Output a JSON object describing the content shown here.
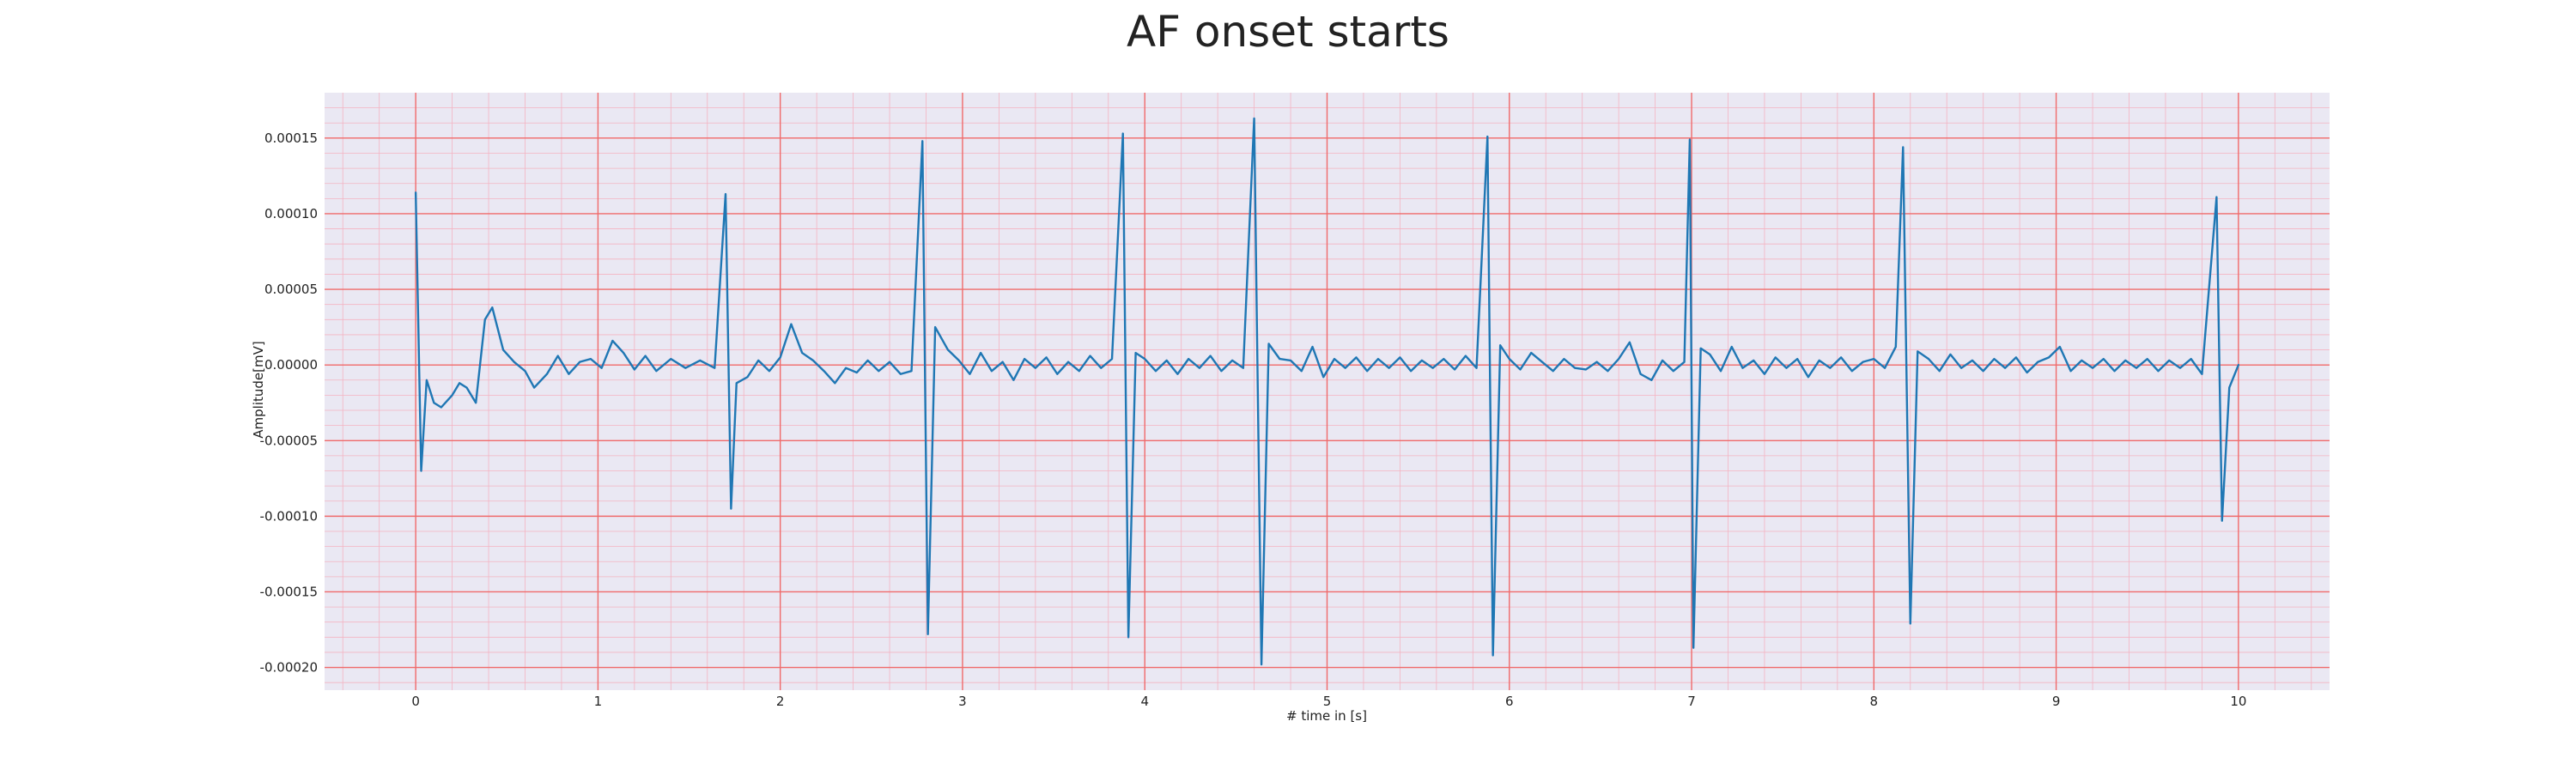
{
  "chart_data": {
    "type": "line",
    "title": "AF onset starts",
    "xlabel": "# time in [s]",
    "ylabel": "Amplitude[mV]",
    "xlim": [
      -0.5,
      10.5
    ],
    "ylim": [
      -0.000215,
      0.00018
    ],
    "x_ticks": [
      0,
      1,
      2,
      3,
      4,
      5,
      6,
      7,
      8,
      9,
      10
    ],
    "y_ticks": [
      0.00015,
      0.0001,
      5e-05,
      0.0,
      -5e-05,
      -0.0001,
      -0.00015,
      -0.0002
    ],
    "x_tick_labels": [
      "0",
      "1",
      "2",
      "3",
      "4",
      "5",
      "6",
      "7",
      "8",
      "9",
      "10"
    ],
    "y_tick_labels": [
      "0.00015",
      "0.00010",
      "0.00005",
      "0.00000",
      "-0.00005",
      "-0.00010",
      "-0.00015",
      "-0.00020"
    ],
    "grid": "on",
    "background_color": "#eae8f3",
    "major_grid_color": "#f06a6a",
    "minor_grid_color": "#f4b3c2",
    "series": [
      {
        "color": "#1f77b4",
        "points": [
          [
            0.0,
            0.000114
          ],
          [
            0.03,
            -7e-05
          ],
          [
            0.06,
            -1e-05
          ],
          [
            0.1,
            -2.5e-05
          ],
          [
            0.14,
            -2.8e-05
          ],
          [
            0.2,
            -2e-05
          ],
          [
            0.24,
            -1.2e-05
          ],
          [
            0.28,
            -1.5e-05
          ],
          [
            0.33,
            -2.5e-05
          ],
          [
            0.38,
            3e-05
          ],
          [
            0.42,
            3.8e-05
          ],
          [
            0.48,
            1e-05
          ],
          [
            0.54,
            2e-06
          ],
          [
            0.6,
            -4e-06
          ],
          [
            0.65,
            -1.5e-05
          ],
          [
            0.72,
            -6e-06
          ],
          [
            0.78,
            6e-06
          ],
          [
            0.84,
            -6e-06
          ],
          [
            0.9,
            2e-06
          ],
          [
            0.96,
            4e-06
          ],
          [
            1.02,
            -2e-06
          ],
          [
            1.08,
            1.6e-05
          ],
          [
            1.14,
            8e-06
          ],
          [
            1.2,
            -3e-06
          ],
          [
            1.26,
            6e-06
          ],
          [
            1.32,
            -4e-06
          ],
          [
            1.4,
            4e-06
          ],
          [
            1.48,
            -2e-06
          ],
          [
            1.56,
            3e-06
          ],
          [
            1.64,
            -2e-06
          ],
          [
            1.7,
            0.000113
          ],
          [
            1.73,
            -9.5e-05
          ],
          [
            1.76,
            -1.2e-05
          ],
          [
            1.82,
            -8e-06
          ],
          [
            1.88,
            3e-06
          ],
          [
            1.94,
            -4e-06
          ],
          [
            2.0,
            5e-06
          ],
          [
            2.06,
            2.7e-05
          ],
          [
            2.12,
            8e-06
          ],
          [
            2.18,
            3e-06
          ],
          [
            2.24,
            -4e-06
          ],
          [
            2.3,
            -1.2e-05
          ],
          [
            2.36,
            -2e-06
          ],
          [
            2.42,
            -5e-06
          ],
          [
            2.48,
            3e-06
          ],
          [
            2.54,
            -4e-06
          ],
          [
            2.6,
            2e-06
          ],
          [
            2.66,
            -6e-06
          ],
          [
            2.72,
            -4e-06
          ],
          [
            2.78,
            0.000148
          ],
          [
            2.81,
            -0.000178
          ],
          [
            2.85,
            2.5e-05
          ],
          [
            2.92,
            1e-05
          ],
          [
            2.98,
            3e-06
          ],
          [
            3.04,
            -6e-06
          ],
          [
            3.1,
            8e-06
          ],
          [
            3.16,
            -4e-06
          ],
          [
            3.22,
            2e-06
          ],
          [
            3.28,
            -1e-05
          ],
          [
            3.34,
            4e-06
          ],
          [
            3.4,
            -2e-06
          ],
          [
            3.46,
            5e-06
          ],
          [
            3.52,
            -6e-06
          ],
          [
            3.58,
            2e-06
          ],
          [
            3.64,
            -4e-06
          ],
          [
            3.7,
            6e-06
          ],
          [
            3.76,
            -2e-06
          ],
          [
            3.82,
            4e-06
          ],
          [
            3.88,
            0.000153
          ],
          [
            3.91,
            -0.00018
          ],
          [
            3.95,
            8e-06
          ],
          [
            4.0,
            4e-06
          ],
          [
            4.06,
            -4e-06
          ],
          [
            4.12,
            3e-06
          ],
          [
            4.18,
            -6e-06
          ],
          [
            4.24,
            4e-06
          ],
          [
            4.3,
            -2e-06
          ],
          [
            4.36,
            6e-06
          ],
          [
            4.42,
            -4e-06
          ],
          [
            4.48,
            3e-06
          ],
          [
            4.54,
            -2e-06
          ],
          [
            4.6,
            0.000163
          ],
          [
            4.64,
            -0.000198
          ],
          [
            4.68,
            1.4e-05
          ],
          [
            4.74,
            4e-06
          ],
          [
            4.8,
            3e-06
          ],
          [
            4.86,
            -4e-06
          ],
          [
            4.92,
            1.2e-05
          ],
          [
            4.98,
            -8e-06
          ],
          [
            5.04,
            4e-06
          ],
          [
            5.1,
            -2e-06
          ],
          [
            5.16,
            5e-06
          ],
          [
            5.22,
            -4e-06
          ],
          [
            5.28,
            4e-06
          ],
          [
            5.34,
            -2e-06
          ],
          [
            5.4,
            5e-06
          ],
          [
            5.46,
            -4e-06
          ],
          [
            5.52,
            3e-06
          ],
          [
            5.58,
            -2e-06
          ],
          [
            5.64,
            4e-06
          ],
          [
            5.7,
            -3e-06
          ],
          [
            5.76,
            6e-06
          ],
          [
            5.82,
            -2e-06
          ],
          [
            5.88,
            0.000151
          ],
          [
            5.91,
            -0.000192
          ],
          [
            5.95,
            1.3e-05
          ],
          [
            6.0,
            4e-06
          ],
          [
            6.06,
            -3e-06
          ],
          [
            6.12,
            8e-06
          ],
          [
            6.18,
            2e-06
          ],
          [
            6.24,
            -4e-06
          ],
          [
            6.3,
            4e-06
          ],
          [
            6.36,
            -2e-06
          ],
          [
            6.42,
            -3e-06
          ],
          [
            6.48,
            2e-06
          ],
          [
            6.54,
            -4e-06
          ],
          [
            6.6,
            4e-06
          ],
          [
            6.66,
            1.5e-05
          ],
          [
            6.72,
            -6e-06
          ],
          [
            6.78,
            -1e-05
          ],
          [
            6.84,
            3e-06
          ],
          [
            6.9,
            -4e-06
          ],
          [
            6.96,
            2e-06
          ],
          [
            6.99,
            0.000149
          ],
          [
            7.01,
            -0.000187
          ],
          [
            7.05,
            1.1e-05
          ],
          [
            7.1,
            7e-06
          ],
          [
            7.16,
            -4e-06
          ],
          [
            7.22,
            1.2e-05
          ],
          [
            7.28,
            -2e-06
          ],
          [
            7.34,
            3e-06
          ],
          [
            7.4,
            -6e-06
          ],
          [
            7.46,
            5e-06
          ],
          [
            7.52,
            -2e-06
          ],
          [
            7.58,
            4e-06
          ],
          [
            7.64,
            -8e-06
          ],
          [
            7.7,
            3e-06
          ],
          [
            7.76,
            -2e-06
          ],
          [
            7.82,
            5e-06
          ],
          [
            7.88,
            -4e-06
          ],
          [
            7.94,
            2e-06
          ],
          [
            8.0,
            4e-06
          ],
          [
            8.06,
            -2e-06
          ],
          [
            8.12,
            1.2e-05
          ],
          [
            8.16,
            0.000144
          ],
          [
            8.2,
            -0.000171
          ],
          [
            8.24,
            9e-06
          ],
          [
            8.3,
            4e-06
          ],
          [
            8.36,
            -4e-06
          ],
          [
            8.42,
            7e-06
          ],
          [
            8.48,
            -2e-06
          ],
          [
            8.54,
            3e-06
          ],
          [
            8.6,
            -4e-06
          ],
          [
            8.66,
            4e-06
          ],
          [
            8.72,
            -2e-06
          ],
          [
            8.78,
            5e-06
          ],
          [
            8.84,
            -5e-06
          ],
          [
            8.9,
            2e-06
          ],
          [
            8.96,
            5e-06
          ],
          [
            9.02,
            1.2e-05
          ],
          [
            9.08,
            -4e-06
          ],
          [
            9.14,
            3e-06
          ],
          [
            9.2,
            -2e-06
          ],
          [
            9.26,
            4e-06
          ],
          [
            9.32,
            -4e-06
          ],
          [
            9.38,
            3e-06
          ],
          [
            9.44,
            -2e-06
          ],
          [
            9.5,
            4e-06
          ],
          [
            9.56,
            -4e-06
          ],
          [
            9.62,
            3e-06
          ],
          [
            9.68,
            -2e-06
          ],
          [
            9.74,
            4e-06
          ],
          [
            9.8,
            -6e-06
          ],
          [
            9.88,
            0.000111
          ],
          [
            9.91,
            -0.000103
          ],
          [
            9.95,
            -1.5e-05
          ],
          [
            10.0,
            0.0
          ]
        ]
      }
    ]
  }
}
